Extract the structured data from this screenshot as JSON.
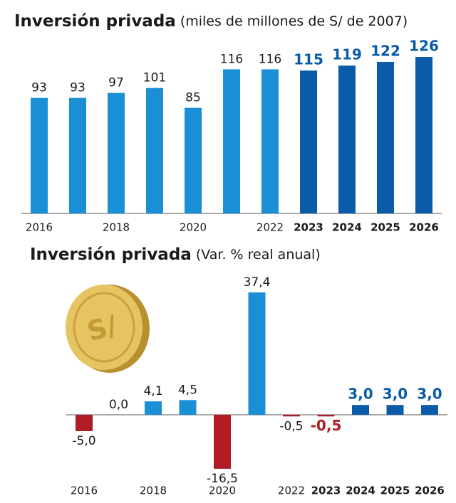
{
  "chart_data": [
    {
      "type": "bar",
      "title": "Inversión privada",
      "subtitle": "(miles de millones de S/ de 2007)",
      "categories": [
        "2016",
        null,
        "2018",
        null,
        "2020",
        null,
        "2022",
        "2023",
        "2024",
        "2025",
        "2026"
      ],
      "values": [
        93,
        93,
        97,
        101,
        85,
        116,
        116,
        115,
        119,
        122,
        126
      ],
      "colors": [
        "#1a8fd6",
        "#1a8fd6",
        "#1a8fd6",
        "#1a8fd6",
        "#1a8fd6",
        "#1a8fd6",
        "#1a8fd6",
        "#0a5ca8",
        "#0a5ca8",
        "#0a5ca8",
        "#0a5ca8"
      ],
      "bold": [
        false,
        false,
        false,
        false,
        false,
        false,
        false,
        true,
        true,
        true,
        true
      ]
    },
    {
      "type": "bar",
      "title": "Inversión privada",
      "subtitle": "(Var. % real anual)",
      "categories": [
        "2016",
        null,
        "2018",
        null,
        "2020",
        null,
        "2022",
        "2023",
        "2024",
        "2025",
        "2026"
      ],
      "values": [
        -5.0,
        0.0,
        4.1,
        4.5,
        -16.5,
        37.4,
        -0.5,
        -0.5,
        3.0,
        3.0,
        3.0
      ],
      "value_labels": [
        "-5,0",
        "0,0",
        "4,1",
        "4,5",
        "-16,5",
        "37,4",
        "-0,5",
        "-0,5",
        "3,0",
        "3,0",
        "3,0"
      ],
      "colors": [
        "#b01c24",
        "#1a8fd6",
        "#1a8fd6",
        "#1a8fd6",
        "#b01c24",
        "#1a8fd6",
        "#b01c24",
        "#b01c24",
        "#0a5ca8",
        "#0a5ca8",
        "#0a5ca8"
      ],
      "bold": [
        false,
        false,
        false,
        false,
        false,
        false,
        false,
        true,
        true,
        true,
        true
      ]
    }
  ],
  "icon": {
    "label": "S/"
  }
}
